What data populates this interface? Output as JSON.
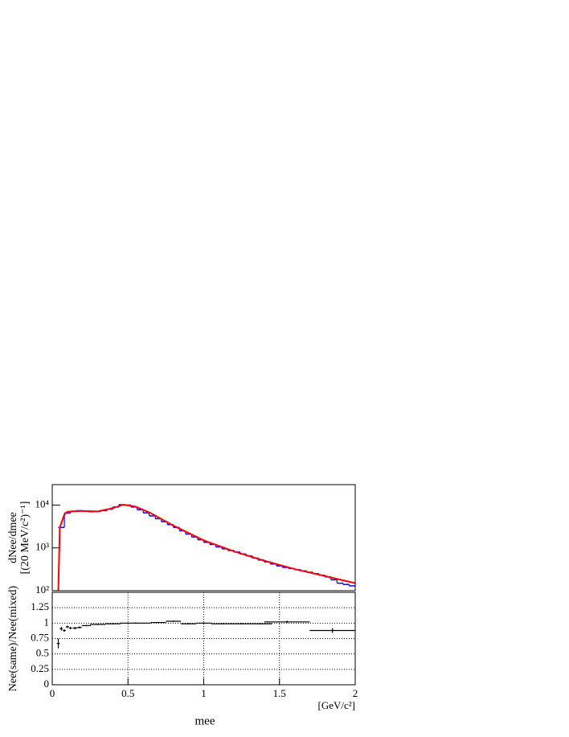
{
  "chart_data": [
    {
      "type": "histogram",
      "ylabel": [
        "dNee/dmee",
        "[(20 MeV/c²)⁻¹]"
      ],
      "log_y": true,
      "xlim": [
        0,
        2
      ],
      "ylim": [
        100,
        30000
      ],
      "yticks": [
        {
          "value": 100,
          "label": "10²"
        },
        {
          "value": 1000,
          "label": "10³"
        },
        {
          "value": 10000,
          "label": "10⁴"
        }
      ],
      "bins": [
        0.04,
        0.08,
        0.12,
        0.16,
        0.2,
        0.24,
        0.28,
        0.32,
        0.36,
        0.4,
        0.44,
        0.48,
        0.52,
        0.56,
        0.6,
        0.64,
        0.68,
        0.72,
        0.76,
        0.8,
        0.84,
        0.88,
        0.92,
        0.96,
        1.0,
        1.04,
        1.08,
        1.12,
        1.16,
        1.2,
        1.24,
        1.28,
        1.32,
        1.36,
        1.4,
        1.44,
        1.48,
        1.52,
        1.56,
        1.6,
        1.64,
        1.68,
        1.72,
        1.76,
        1.8,
        1.84,
        1.88,
        1.92,
        1.96,
        2.0
      ],
      "counts": [
        3000,
        6500,
        7200,
        7400,
        7200,
        7000,
        7100,
        7400,
        8000,
        9000,
        10200,
        10000,
        9000,
        7800,
        6600,
        5600,
        4800,
        4100,
        3500,
        3000,
        2500,
        2100,
        1800,
        1550,
        1350,
        1200,
        1050,
        950,
        870,
        800,
        720,
        650,
        580,
        520,
        470,
        420,
        380,
        350,
        330,
        310,
        290,
        270,
        250,
        230,
        210,
        180,
        150,
        140,
        130
      ],
      "color": "#0000ff",
      "fit": {
        "color": "#ff0000",
        "x": [
          0.04,
          0.05,
          0.08,
          0.1,
          0.2,
          0.3,
          0.4,
          0.47,
          0.55,
          0.65,
          0.8,
          1.0,
          1.2,
          1.4,
          1.6,
          1.8,
          2.0
        ],
        "values": [
          100,
          3000,
          6000,
          7000,
          7300,
          7100,
          8500,
          10200,
          9200,
          6500,
          3300,
          1500,
          830,
          500,
          320,
          220,
          150
        ]
      }
    },
    {
      "type": "errorbar",
      "ylabel": [
        "Nee(same)/Nee(mixed)"
      ],
      "xlabel": "mee",
      "xunit": "[GeV/c²]",
      "xlim": [
        0,
        2
      ],
      "ylim": [
        0,
        1.5
      ],
      "xticks": [
        0,
        0.5,
        1,
        1.5,
        2
      ],
      "yticks": [
        0,
        0.25,
        0.5,
        0.75,
        1,
        1.25
      ],
      "grid": true,
      "color": "#000000",
      "x": [
        0.04,
        0.06,
        0.08,
        0.1,
        0.12,
        0.15,
        0.18,
        0.225,
        0.3,
        0.4,
        0.55,
        0.7,
        0.8,
        0.9,
        1.0,
        1.125,
        1.25,
        1.375,
        1.55,
        1.85
      ],
      "xerr": [
        0.01,
        0.01,
        0.01,
        0.01,
        0.01,
        0.015,
        0.015,
        0.03,
        0.05,
        0.05,
        0.1,
        0.05,
        0.05,
        0.05,
        0.05,
        0.075,
        0.05,
        0.075,
        0.15,
        0.15
      ],
      "values": [
        0.67,
        0.91,
        0.88,
        0.94,
        0.92,
        0.92,
        0.93,
        0.96,
        0.98,
        0.99,
        1.0,
        1.01,
        1.03,
        0.99,
        1.0,
        0.99,
        0.99,
        0.99,
        1.02,
        0.88
      ],
      "errors": [
        0.08,
        0.03,
        0.02,
        0.02,
        0.02,
        0.02,
        0.015,
        0.01,
        0.01,
        0.01,
        0.01,
        0.01,
        0.01,
        0.01,
        0.01,
        0.01,
        0.01,
        0.01,
        0.02,
        0.04
      ]
    }
  ]
}
